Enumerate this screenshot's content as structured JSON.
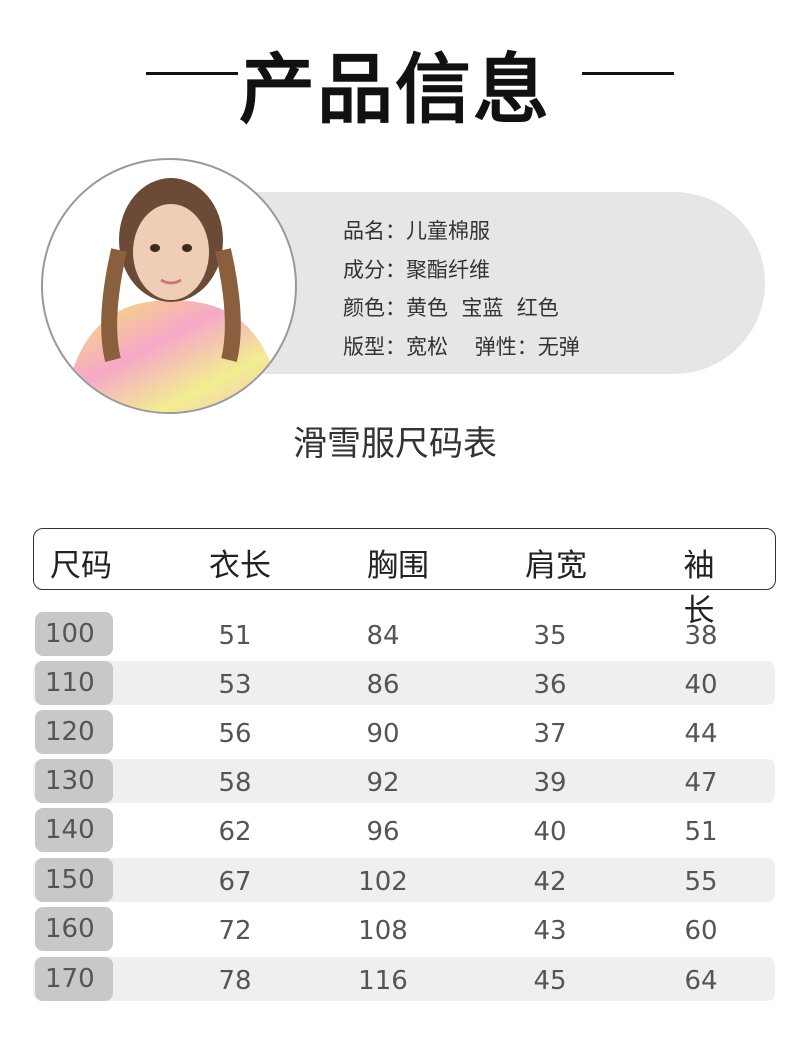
{
  "title": "产品信息",
  "product": {
    "name": "品名：儿童棉服",
    "material": "成分：聚酯纤维",
    "color": "颜色：黄色  宝蓝  红色",
    "fit": "版型：宽松    弹性：无弹"
  },
  "size_chart": {
    "title": "滑雪服尺码表",
    "headers": [
      "尺码",
      "衣长",
      "胸围",
      "肩宽",
      "袖长"
    ],
    "rows": [
      [
        "100",
        "51",
        "84",
        "35",
        "38"
      ],
      [
        "110",
        "53",
        "86",
        "36",
        "40"
      ],
      [
        "120",
        "56",
        "90",
        "37",
        "44"
      ],
      [
        "130",
        "58",
        "92",
        "39",
        "47"
      ],
      [
        "140",
        "62",
        "96",
        "40",
        "51"
      ],
      [
        "150",
        "67",
        "102",
        "42",
        "55"
      ],
      [
        "160",
        "72",
        "108",
        "43",
        "60"
      ],
      [
        "170",
        "78",
        "116",
        "45",
        "64"
      ]
    ]
  }
}
